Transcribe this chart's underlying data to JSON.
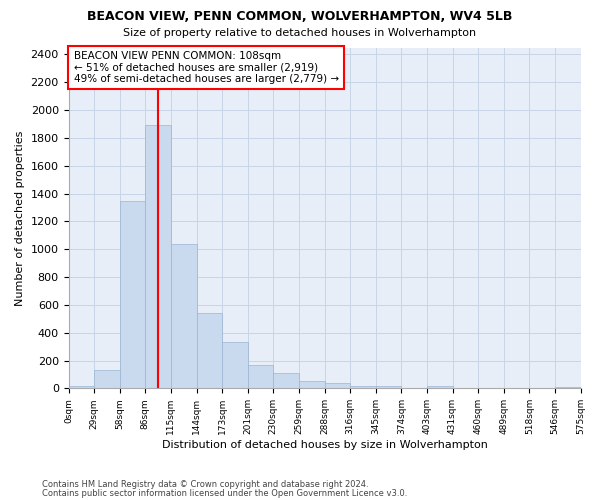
{
  "title": "BEACON VIEW, PENN COMMON, WOLVERHAMPTON, WV4 5LB",
  "subtitle": "Size of property relative to detached houses in Wolverhampton",
  "xlabel": "Distribution of detached houses by size in Wolverhampton",
  "ylabel": "Number of detached properties",
  "bar_color": "#c9d9ee",
  "bar_edge_color": "#9ab4d4",
  "grid_color": "#c8d4e8",
  "background_color": "#e8eef8",
  "bar_values": [
    15,
    130,
    1350,
    1890,
    1040,
    540,
    330,
    170,
    110,
    55,
    35,
    20,
    15,
    5,
    15,
    5,
    5,
    5,
    5,
    10
  ],
  "x_labels": [
    "0sqm",
    "29sqm",
    "58sqm",
    "86sqm",
    "115sqm",
    "144sqm",
    "173sqm",
    "201sqm",
    "230sqm",
    "259sqm",
    "288sqm",
    "316sqm",
    "345sqm",
    "374sqm",
    "403sqm",
    "431sqm",
    "460sqm",
    "489sqm",
    "518sqm",
    "546sqm",
    "575sqm"
  ],
  "ylim": [
    0,
    2450
  ],
  "yticks": [
    0,
    200,
    400,
    600,
    800,
    1000,
    1200,
    1400,
    1600,
    1800,
    2000,
    2200,
    2400
  ],
  "vline_x": 3.5,
  "annotation_title": "BEACON VIEW PENN COMMON: 108sqm",
  "annotation_line1": "← 51% of detached houses are smaller (2,919)",
  "annotation_line2": "49% of semi-detached houses are larger (2,779) →",
  "footer_line1": "Contains HM Land Registry data © Crown copyright and database right 2024.",
  "footer_line2": "Contains public sector information licensed under the Open Government Licence v3.0."
}
